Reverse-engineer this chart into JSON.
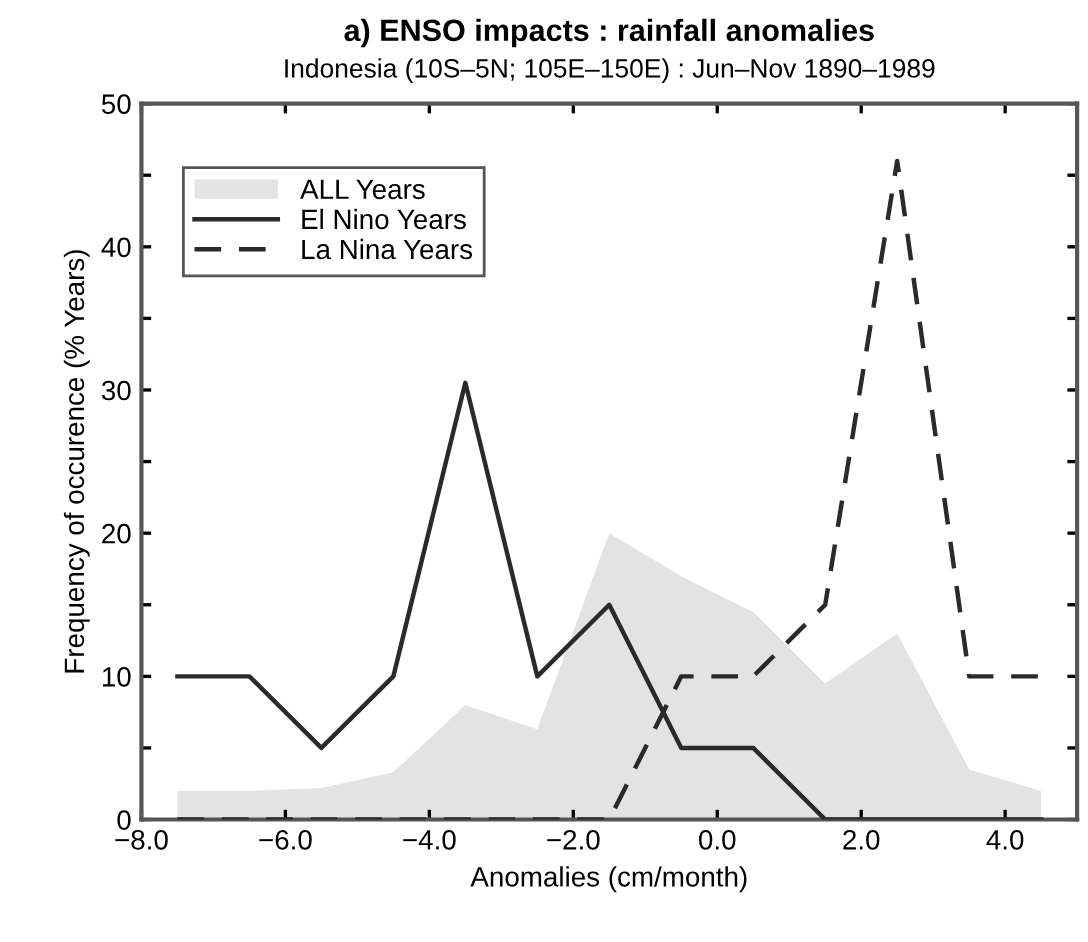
{
  "chart_data": {
    "type": "line",
    "title": "a) ENSO impacts : rainfall anomalies",
    "subtitle": "Indonesia (10S–5N; 105E–150E) : Jun–Nov 1890–1989",
    "xlabel": "Anomalies (cm/month)",
    "ylabel": "Frequency of occurence (% Years)",
    "x": [
      -7.5,
      -6.5,
      -5.5,
      -4.5,
      -3.5,
      -2.5,
      -1.5,
      -0.5,
      0.5,
      1.5,
      2.5,
      3.5,
      4.5
    ],
    "series": [
      {
        "name": "ALL Years",
        "type": "area",
        "color": "#e3e3e3",
        "values": [
          2,
          2,
          2.2,
          3.3,
          8,
          6.3,
          20,
          17,
          14.5,
          9.5,
          13,
          3.5,
          2
        ]
      },
      {
        "name": "El Nino Years",
        "color": "#2a2a2a",
        "line_style": "solid",
        "values": [
          10,
          10,
          5,
          10,
          30.5,
          10,
          15,
          5,
          5,
          0,
          0,
          0,
          0
        ]
      },
      {
        "name": "La Nina Years",
        "color": "#2a2a2a",
        "line_style": "dashed",
        "values": [
          0,
          0,
          0,
          0,
          0,
          0,
          0,
          10,
          10,
          15,
          46,
          10,
          10
        ]
      }
    ],
    "xlim": [
      -8,
      5
    ],
    "ylim": [
      0,
      50
    ],
    "xticks": [
      {
        "value": -8,
        "label": "−8.0"
      },
      {
        "value": -6,
        "label": "−6.0"
      },
      {
        "value": -4,
        "label": "−4.0"
      },
      {
        "value": -2,
        "label": "−2.0"
      },
      {
        "value": 0,
        "label": "0.0"
      },
      {
        "value": 2,
        "label": "2.0"
      },
      {
        "value": 4,
        "label": "4.0"
      }
    ],
    "yticks": [
      0,
      {
        "value": 5,
        "label": null
      },
      10,
      {
        "value": 15,
        "label": null
      },
      20,
      {
        "value": 25,
        "label": null
      },
      30,
      {
        "value": 35,
        "label": null
      },
      40,
      {
        "value": 45,
        "label": null
      },
      50
    ],
    "grid": false,
    "legend": "top left",
    "marker": "none"
  }
}
